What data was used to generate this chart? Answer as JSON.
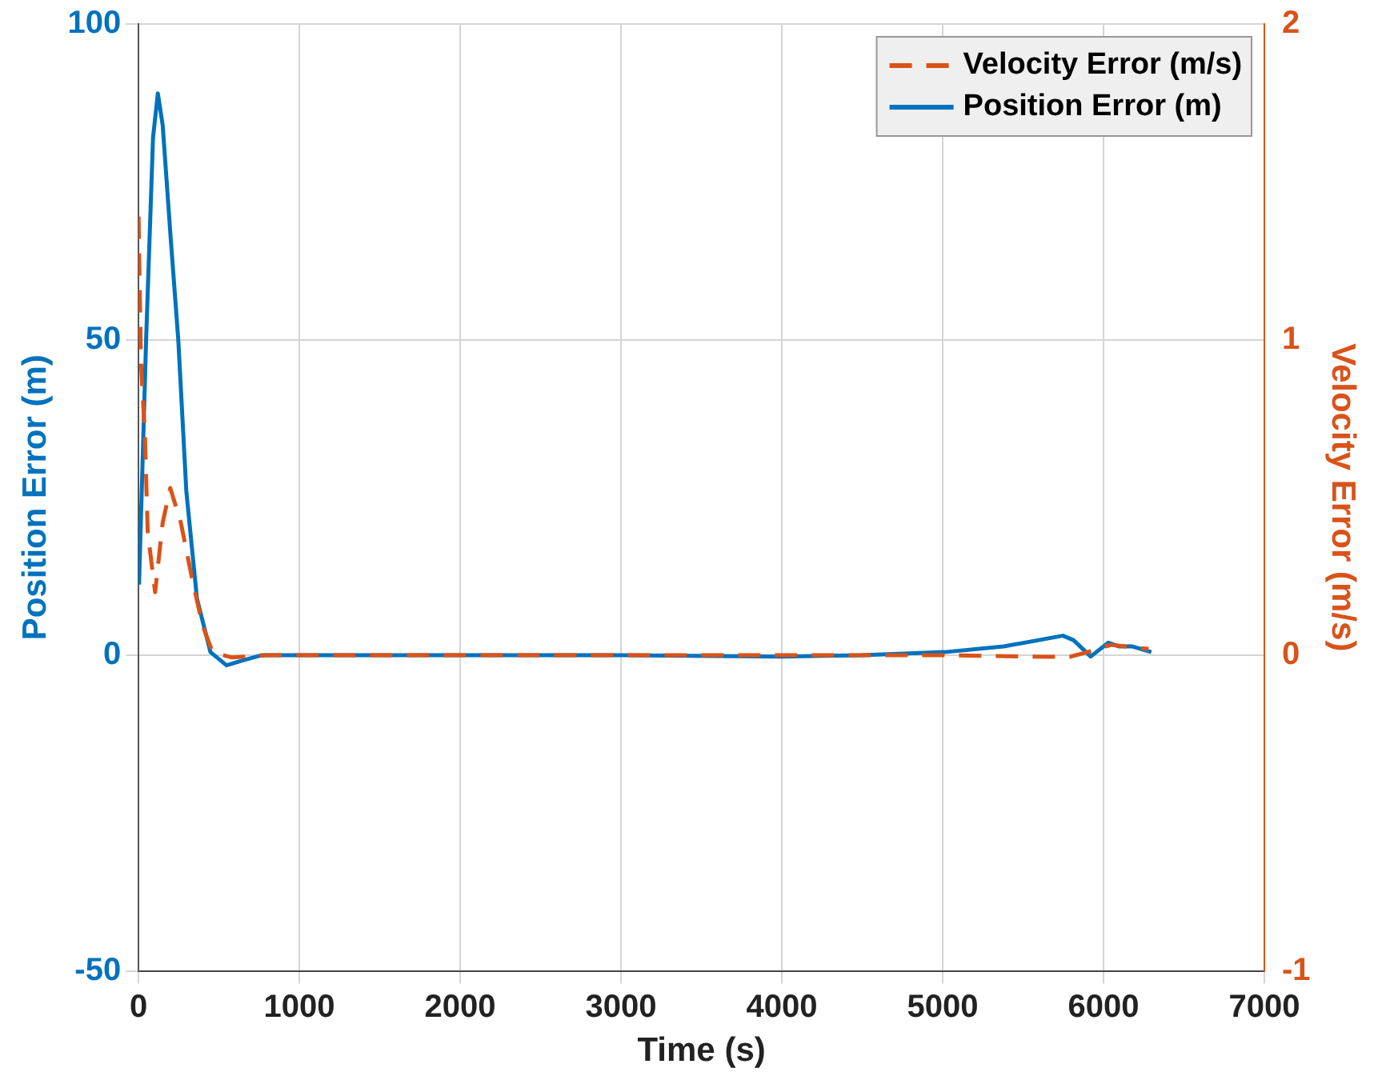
{
  "chart_data": {
    "type": "line",
    "xlabel": "Time (s)",
    "ylabel": "Position Error (m)",
    "y2label": "Velocity Error (m/s)",
    "xlim": [
      0,
      7000
    ],
    "xticks": [
      0,
      1000,
      2000,
      3000,
      4000,
      5000,
      6000,
      7000
    ],
    "ylim": [
      -50,
      100
    ],
    "yticks": [
      -50,
      0,
      50,
      100
    ],
    "y2lim": [
      -1,
      2
    ],
    "y2ticks": [
      -1,
      0,
      1,
      2
    ],
    "grid": true,
    "legend": "top right",
    "series": [
      {
        "name": "Velocity Error (m/s)",
        "color": "#d95319",
        "axis": "y2",
        "line_style": "dashed",
        "x": [
          0,
          8,
          15,
          40,
          57,
          103,
          150,
          197,
          263,
          330,
          397,
          460,
          580,
          800,
          2000,
          3000,
          4000,
          5000,
          5700,
          5790,
          5900,
          6047,
          6280
        ],
        "values": [
          1.39,
          1.14,
          0.93,
          0.69,
          0.39,
          0.2,
          0.42,
          0.53,
          0.42,
          0.25,
          0.096,
          0.01,
          -0.007,
          0,
          0,
          0,
          0,
          0,
          -0.005,
          -0.005,
          0.01,
          0.033,
          0.02
        ]
      },
      {
        "name": "Position Error (m)",
        "color": "#0072bd",
        "axis": "y",
        "line_style": "solid",
        "x": [
          3,
          47,
          90,
          120,
          150,
          200,
          247,
          297,
          363,
          447,
          547,
          650,
          763,
          1000,
          2000,
          3000,
          4000,
          4500,
          5013,
          5380,
          5747,
          5813,
          5920,
          6030,
          6097,
          6180,
          6297
        ],
        "values": [
          11.2,
          50,
          82,
          89,
          84,
          66,
          50,
          26,
          9,
          0.5,
          -1.6,
          -0.8,
          0,
          0,
          0,
          0,
          -0.2,
          0,
          0.5,
          1.4,
          3.1,
          2.4,
          -0.2,
          2,
          1.4,
          1.4,
          0.5
        ]
      }
    ]
  }
}
